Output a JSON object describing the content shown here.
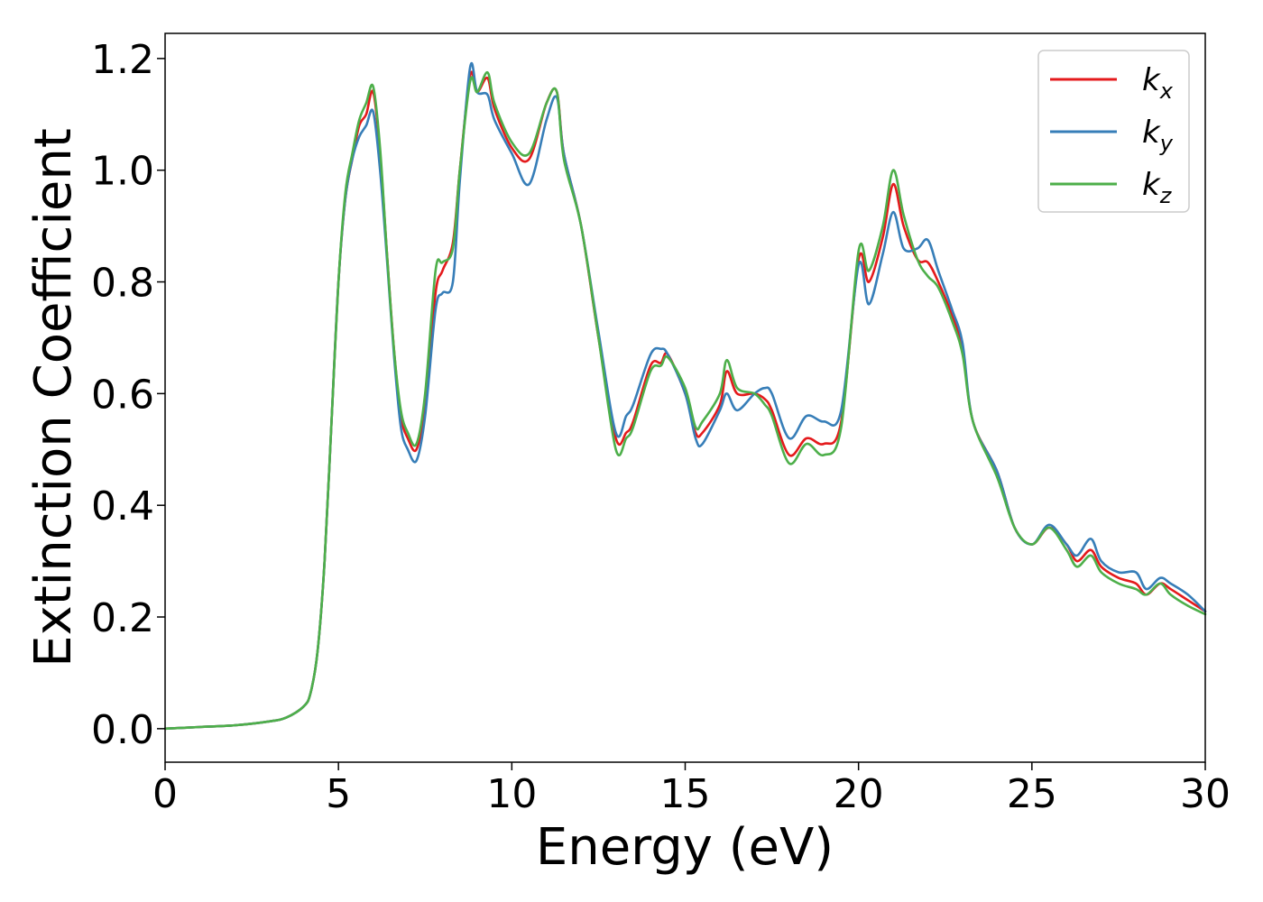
{
  "chart_data": {
    "type": "line",
    "title": "",
    "xlabel": "Energy (eV)",
    "ylabel": "Extinction Coefficient",
    "xlim": [
      0,
      30
    ],
    "ylim": [
      -0.06,
      1.245
    ],
    "xticks": [
      0,
      5,
      10,
      15,
      20,
      25,
      30
    ],
    "xtick_labels": [
      "0",
      "5",
      "10",
      "15",
      "20",
      "25",
      "30"
    ],
    "yticks": [
      0.0,
      0.2,
      0.4,
      0.6,
      0.8,
      1.0,
      1.2
    ],
    "ytick_labels": [
      "0.0",
      "0.2",
      "0.4",
      "0.6",
      "0.8",
      "1.0",
      "1.2"
    ],
    "grid": false,
    "legend_position": "top-right",
    "series": [
      {
        "name": "k_x",
        "base": "k",
        "sub": "x",
        "color": "#e41a1c",
        "x": [
          0,
          1,
          2,
          3,
          3.5,
          4,
          4.2,
          4.4,
          4.6,
          4.8,
          5,
          5.2,
          5.4,
          5.6,
          5.8,
          6,
          6.2,
          6.4,
          6.6,
          6.8,
          7,
          7.25,
          7.5,
          7.8,
          8,
          8.3,
          8.5,
          8.8,
          9,
          9.3,
          9.5,
          10,
          10.5,
          11,
          11.3,
          11.5,
          12,
          12.5,
          13,
          13.3,
          13.5,
          14,
          14.3,
          14.5,
          15,
          15.3,
          15.5,
          16,
          16.2,
          16.5,
          17,
          17.3,
          17.5,
          18,
          18.5,
          19,
          19.5,
          20,
          20.3,
          20.7,
          21,
          21.3,
          21.7,
          22,
          22.3,
          22.7,
          23,
          23.3,
          24,
          24.5,
          25,
          25.5,
          26,
          26.3,
          26.7,
          27,
          27.5,
          28,
          28.3,
          28.7,
          29,
          29.5,
          30
        ],
        "y": [
          0,
          0.003,
          0.006,
          0.013,
          0.02,
          0.04,
          0.065,
          0.14,
          0.3,
          0.55,
          0.8,
          0.95,
          1.02,
          1.08,
          1.1,
          1.14,
          1.03,
          0.85,
          0.68,
          0.56,
          0.52,
          0.5,
          0.58,
          0.78,
          0.82,
          0.87,
          1.0,
          1.17,
          1.14,
          1.165,
          1.11,
          1.04,
          1.02,
          1.12,
          1.14,
          1.03,
          0.9,
          0.7,
          0.52,
          0.53,
          0.55,
          0.65,
          0.655,
          0.67,
          0.6,
          0.53,
          0.53,
          0.58,
          0.64,
          0.6,
          0.6,
          0.59,
          0.57,
          0.49,
          0.52,
          0.51,
          0.55,
          0.84,
          0.8,
          0.88,
          0.975,
          0.9,
          0.84,
          0.835,
          0.8,
          0.74,
          0.68,
          0.55,
          0.46,
          0.36,
          0.33,
          0.36,
          0.33,
          0.3,
          0.32,
          0.29,
          0.27,
          0.26,
          0.24,
          0.26,
          0.25,
          0.23,
          0.21
        ]
      },
      {
        "name": "k_y",
        "base": "k",
        "sub": "y",
        "color": "#377eb8",
        "x": [
          0,
          1,
          2,
          3,
          3.5,
          4,
          4.2,
          4.4,
          4.6,
          4.8,
          5,
          5.2,
          5.4,
          5.6,
          5.8,
          6,
          6.2,
          6.4,
          6.6,
          6.8,
          7,
          7.25,
          7.5,
          7.8,
          8,
          8.3,
          8.5,
          8.8,
          9,
          9.3,
          9.5,
          10,
          10.5,
          11,
          11.3,
          11.5,
          12,
          12.5,
          13,
          13.3,
          13.5,
          14,
          14.3,
          14.5,
          15,
          15.3,
          15.5,
          16,
          16.2,
          16.5,
          17,
          17.3,
          17.5,
          18,
          18.5,
          19,
          19.5,
          20,
          20.3,
          20.7,
          21,
          21.3,
          21.7,
          22,
          22.3,
          22.7,
          23,
          23.3,
          24,
          24.5,
          25,
          25.5,
          26,
          26.3,
          26.7,
          27,
          27.5,
          28,
          28.3,
          28.7,
          29,
          29.5,
          30
        ],
        "y": [
          0,
          0.003,
          0.006,
          0.013,
          0.02,
          0.04,
          0.065,
          0.14,
          0.3,
          0.55,
          0.8,
          0.95,
          1.02,
          1.06,
          1.08,
          1.105,
          1.0,
          0.84,
          0.67,
          0.54,
          0.5,
          0.48,
          0.56,
          0.75,
          0.78,
          0.8,
          0.98,
          1.185,
          1.14,
          1.135,
          1.09,
          1.03,
          0.975,
          1.09,
          1.13,
          1.03,
          0.9,
          0.71,
          0.53,
          0.56,
          0.58,
          0.67,
          0.68,
          0.67,
          0.6,
          0.52,
          0.51,
          0.57,
          0.6,
          0.57,
          0.6,
          0.61,
          0.6,
          0.52,
          0.56,
          0.55,
          0.57,
          0.83,
          0.76,
          0.85,
          0.925,
          0.86,
          0.86,
          0.875,
          0.82,
          0.75,
          0.69,
          0.55,
          0.46,
          0.36,
          0.33,
          0.365,
          0.33,
          0.31,
          0.34,
          0.3,
          0.28,
          0.28,
          0.25,
          0.27,
          0.26,
          0.24,
          0.21
        ]
      },
      {
        "name": "k_z",
        "base": "k",
        "sub": "z",
        "color": "#4daf4a",
        "x": [
          0,
          1,
          2,
          3,
          3.5,
          4,
          4.2,
          4.4,
          4.6,
          4.8,
          5,
          5.2,
          5.4,
          5.6,
          5.8,
          6,
          6.2,
          6.4,
          6.6,
          6.8,
          7,
          7.25,
          7.5,
          7.8,
          8,
          8.3,
          8.5,
          8.8,
          9,
          9.3,
          9.5,
          10,
          10.5,
          11,
          11.3,
          11.5,
          12,
          12.5,
          13,
          13.3,
          13.5,
          14,
          14.3,
          14.5,
          15,
          15.3,
          15.5,
          16,
          16.2,
          16.5,
          17,
          17.3,
          17.5,
          18,
          18.5,
          19,
          19.5,
          20,
          20.3,
          20.7,
          21,
          21.3,
          21.7,
          22,
          22.3,
          22.7,
          23,
          23.3,
          24,
          24.5,
          25,
          25.5,
          26,
          26.3,
          26.7,
          27,
          27.5,
          28,
          28.3,
          28.7,
          29,
          29.5,
          30
        ],
        "y": [
          0,
          0.003,
          0.006,
          0.013,
          0.02,
          0.04,
          0.065,
          0.14,
          0.3,
          0.55,
          0.8,
          0.96,
          1.03,
          1.09,
          1.12,
          1.15,
          1.04,
          0.85,
          0.68,
          0.57,
          0.53,
          0.51,
          0.6,
          0.82,
          0.835,
          0.86,
          1.0,
          1.16,
          1.14,
          1.175,
          1.12,
          1.05,
          1.03,
          1.12,
          1.14,
          1.02,
          0.9,
          0.7,
          0.5,
          0.52,
          0.54,
          0.64,
          0.65,
          0.665,
          0.61,
          0.54,
          0.55,
          0.6,
          0.66,
          0.61,
          0.6,
          0.58,
          0.56,
          0.475,
          0.51,
          0.49,
          0.54,
          0.855,
          0.82,
          0.9,
          1.0,
          0.92,
          0.84,
          0.81,
          0.79,
          0.73,
          0.67,
          0.55,
          0.45,
          0.36,
          0.33,
          0.36,
          0.32,
          0.29,
          0.31,
          0.28,
          0.26,
          0.25,
          0.24,
          0.26,
          0.24,
          0.22,
          0.205
        ]
      }
    ]
  }
}
